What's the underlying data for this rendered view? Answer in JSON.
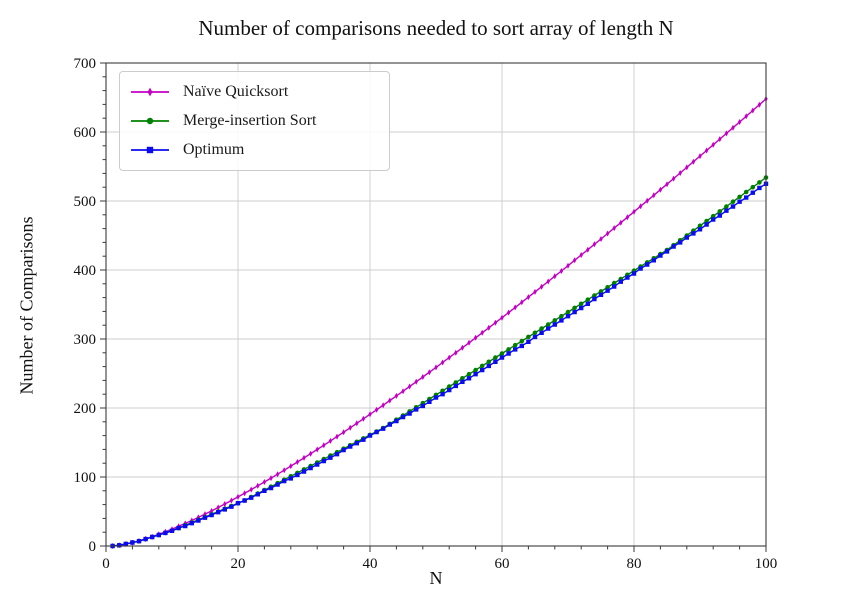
{
  "figure": {
    "background": "#ffffff",
    "spine_color": "#3b3b3b",
    "tick_color": "#3b3b3b",
    "text_color": "#111111"
  },
  "chart_data": {
    "type": "line",
    "title": "Number of comparisons needed to sort array of length N",
    "xlabel": "N",
    "ylabel": "Number of Comparisons",
    "xlim": [
      0,
      100
    ],
    "ylim": [
      0,
      700
    ],
    "x_major_ticks": [
      0,
      20,
      40,
      60,
      80,
      100
    ],
    "y_major_ticks": [
      0,
      100,
      200,
      300,
      400,
      500,
      600,
      700
    ],
    "x_minor_step": 4,
    "y_minor_step": 20,
    "grid": "major",
    "grid_color": "#cdcdcd",
    "legend_position": "upper-left",
    "x": [
      1,
      2,
      3,
      4,
      5,
      6,
      7,
      8,
      9,
      10,
      11,
      12,
      13,
      14,
      15,
      16,
      17,
      18,
      19,
      20,
      21,
      22,
      23,
      24,
      25,
      26,
      27,
      28,
      29,
      30,
      31,
      32,
      33,
      34,
      35,
      36,
      37,
      38,
      39,
      40,
      41,
      42,
      43,
      44,
      45,
      46,
      47,
      48,
      49,
      50,
      51,
      52,
      53,
      54,
      55,
      56,
      57,
      58,
      59,
      60,
      61,
      62,
      63,
      64,
      65,
      66,
      67,
      68,
      69,
      70,
      71,
      72,
      73,
      74,
      75,
      76,
      77,
      78,
      79,
      80,
      81,
      82,
      83,
      84,
      85,
      86,
      87,
      88,
      89,
      90,
      91,
      92,
      93,
      94,
      95,
      96,
      97,
      98,
      99,
      100
    ],
    "series": [
      {
        "name": "Naïve Quicksort",
        "color": "#c400c4",
        "marker": "thin-diamond",
        "values": [
          0.0,
          1.0,
          2.7,
          4.8,
          7.4,
          10.3,
          13.5,
          16.9,
          20.6,
          24.4,
          28.5,
          32.7,
          37.0,
          41.5,
          46.2,
          50.9,
          55.8,
          60.8,
          65.9,
          71.1,
          76.4,
          81.8,
          87.2,
          92.8,
          98.4,
          104.1,
          109.9,
          115.8,
          121.7,
          127.7,
          133.7,
          139.9,
          146.0,
          152.3,
          158.6,
          164.9,
          171.3,
          177.8,
          184.3,
          190.9,
          197.4,
          204.1,
          210.8,
          217.5,
          224.3,
          231.2,
          238.0,
          245.0,
          251.9,
          258.9,
          266.0,
          273.0,
          280.1,
          287.3,
          294.5,
          301.7,
          309.0,
          316.3,
          323.6,
          330.9,
          338.3,
          345.8,
          353.2,
          360.7,
          368.2,
          375.8,
          383.4,
          391.0,
          398.6,
          406.3,
          414.0,
          421.7,
          429.4,
          437.2,
          445.0,
          452.9,
          460.7,
          468.6,
          476.5,
          484.4,
          492.4,
          500.3,
          508.3,
          516.4,
          524.4,
          532.5,
          540.6,
          548.7,
          556.9,
          565.0,
          573.2,
          581.4,
          589.7,
          597.9,
          606.2,
          614.5,
          622.8,
          631.1,
          639.5,
          647.9
        ]
      },
      {
        "name": "Merge-insertion Sort",
        "color": "#008000",
        "marker": "circle",
        "values": [
          0,
          1,
          3,
          5,
          7,
          10,
          13,
          16,
          19,
          22,
          26,
          30,
          34,
          38,
          42,
          46,
          50,
          54,
          58,
          62,
          66,
          71,
          76,
          81,
          86,
          91,
          96,
          101,
          106,
          111,
          116,
          121,
          126,
          131,
          136,
          141,
          146,
          151,
          156,
          161,
          166,
          171,
          177,
          183,
          189,
          195,
          201,
          207,
          213,
          219,
          225,
          231,
          237,
          243,
          249,
          255,
          261,
          267,
          273,
          279,
          285,
          291,
          297,
          303,
          309,
          315,
          321,
          327,
          333,
          339,
          345,
          351,
          357,
          363,
          369,
          375,
          381,
          387,
          393,
          399,
          405,
          411,
          417,
          423,
          429,
          436,
          443,
          450,
          457,
          464,
          471,
          478,
          485,
          492,
          499,
          506,
          513,
          520,
          527,
          534
        ]
      },
      {
        "name": "Optimum",
        "color": "#0b0bf0",
        "marker": "square",
        "values": [
          0,
          1,
          3,
          5,
          7,
          10,
          13,
          16,
          19,
          22,
          26,
          29,
          33,
          37,
          41,
          45,
          49,
          53,
          57,
          62,
          66,
          70,
          75,
          80,
          84,
          89,
          94,
          98,
          103,
          108,
          113,
          118,
          123,
          128,
          133,
          139,
          144,
          149,
          154,
          160,
          165,
          170,
          176,
          181,
          187,
          192,
          198,
          203,
          209,
          215,
          220,
          226,
          232,
          238,
          243,
          249,
          255,
          261,
          267,
          273,
          279,
          285,
          290,
          296,
          303,
          309,
          315,
          321,
          327,
          333,
          339,
          345,
          351,
          358,
          364,
          370,
          376,
          383,
          389,
          395,
          402,
          408,
          414,
          421,
          427,
          434,
          440,
          447,
          453,
          459,
          466,
          473,
          479,
          486,
          492,
          499,
          505,
          512,
          519,
          525
        ]
      }
    ]
  }
}
